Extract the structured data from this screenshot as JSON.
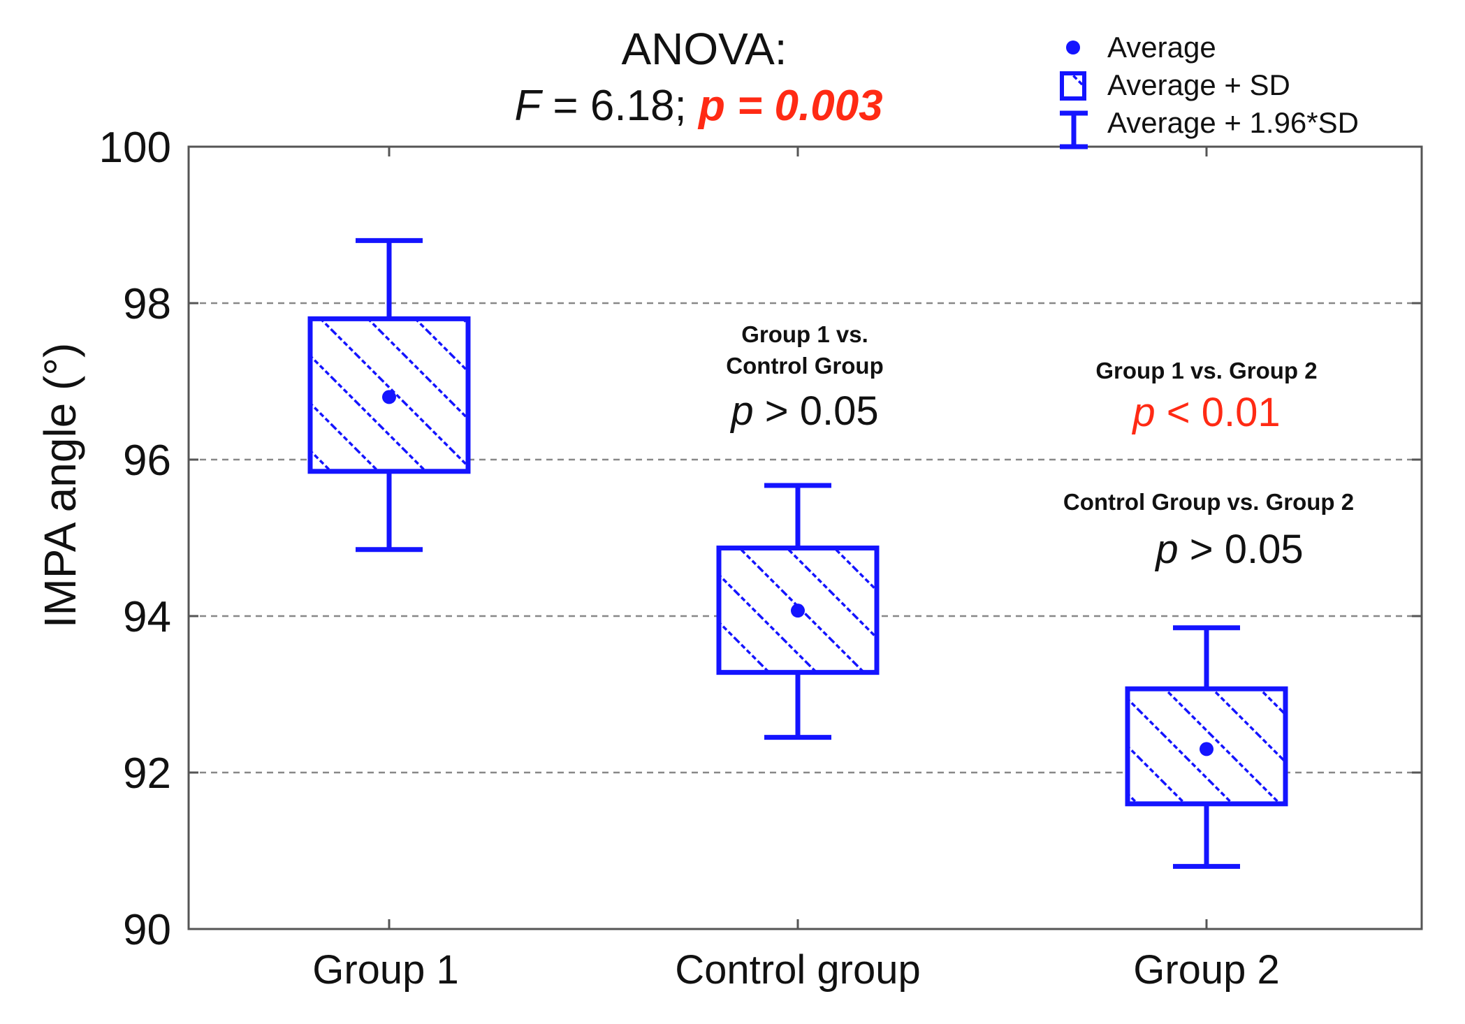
{
  "chart_data": {
    "type": "box",
    "title_line1": "ANOVA:",
    "title_F_symbol": "F",
    "title_F_value": " = 6.18; ",
    "title_p_text": "p = 0.003",
    "ylabel": "IMPA angle (°)",
    "xlabel": "",
    "ylim": [
      90,
      100
    ],
    "yticks": [
      "90",
      "92",
      "94",
      "96",
      "98",
      "100"
    ],
    "gridlines": [
      92,
      94,
      96,
      98
    ],
    "categories": [
      "Group 1",
      "Control group",
      "Group 2"
    ],
    "series": [
      {
        "name": "Group 1",
        "mean": 96.8,
        "sd_low": 95.85,
        "sd_high": 97.8,
        "ci_low": 94.85,
        "ci_high": 98.8
      },
      {
        "name": "Control group",
        "mean": 94.07,
        "sd_low": 93.28,
        "sd_high": 94.87,
        "ci_low": 92.45,
        "ci_high": 95.67
      },
      {
        "name": "Group 2",
        "mean": 92.3,
        "sd_low": 91.6,
        "sd_high": 93.07,
        "ci_low": 90.8,
        "ci_high": 93.85
      }
    ],
    "legend": {
      "position": "top-right",
      "mean_label": "Average",
      "box_label": "Average + SD",
      "whisker_label": "Average + 1.96*SD"
    },
    "annotations": {
      "g1_vs_control_line1": "Group 1 vs.",
      "g1_vs_control_line2": "Control Group",
      "g1_vs_control_p": "p",
      "g1_vs_control_value": " > 0.05",
      "g1_vs_g2_line1": "Group 1 vs. Group 2",
      "g1_vs_g2_p": "p",
      "g1_vs_g2_value": " < 0.01",
      "control_vs_g2_line1": "Control Group vs. Group 2",
      "control_vs_g2_p": "p",
      "control_vs_g2_value": " > 0.05"
    },
    "colors": {
      "series": "#1414ff",
      "significant": "#ff2a14",
      "grid": "#888888",
      "axis": "#555555"
    }
  }
}
